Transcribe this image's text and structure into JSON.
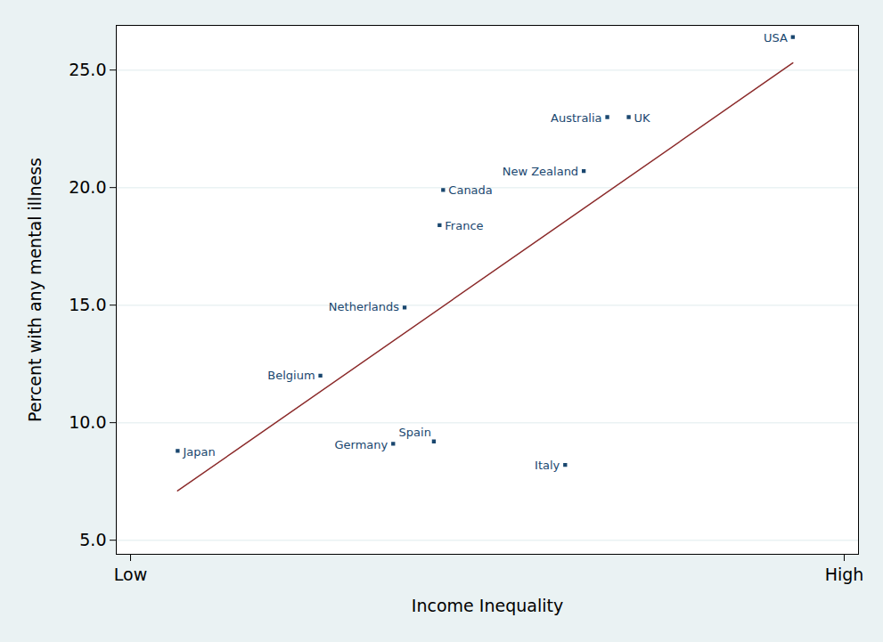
{
  "chart_data": {
    "type": "scatter",
    "x_label": "Income Inequality",
    "y_label": "Percent with any mental illness",
    "labels": [
      "Japan",
      "Belgium",
      "Netherlands",
      "Germany",
      "Spain",
      "France",
      "Canada",
      "Italy",
      "New Zealand",
      "Australia",
      "UK",
      "USA"
    ],
    "x": [
      0.66,
      2.66,
      3.84,
      3.68,
      4.25,
      4.33,
      4.38,
      6.09,
      6.35,
      6.68,
      6.98,
      9.28
    ],
    "values": [
      8.8,
      12.0,
      14.9,
      9.1,
      9.2,
      18.4,
      19.9,
      8.2,
      20.7,
      23.0,
      23.0,
      26.4
    ],
    "color": "#1a476f",
    "marker": "square",
    "fit_line": {
      "type": "line",
      "x": [
        0.66,
        9.28
      ],
      "values": [
        7.1,
        25.3
      ],
      "color": "#8b2a2a",
      "line_style": "solid"
    },
    "xlim": [
      -0.2,
      10.2
    ],
    "xticks": [
      {
        "value": 0,
        "label": "Low"
      },
      {
        "value": 10,
        "label": "High"
      }
    ],
    "ylim": [
      4.4,
      26.9
    ],
    "yticks": [
      {
        "value": 5,
        "label": "5.0"
      },
      {
        "value": 10,
        "label": "10.0"
      },
      {
        "value": 15,
        "label": "15.0"
      },
      {
        "value": 20,
        "label": "20.0"
      },
      {
        "value": 25,
        "label": "25.0"
      }
    ],
    "grid": true
  }
}
